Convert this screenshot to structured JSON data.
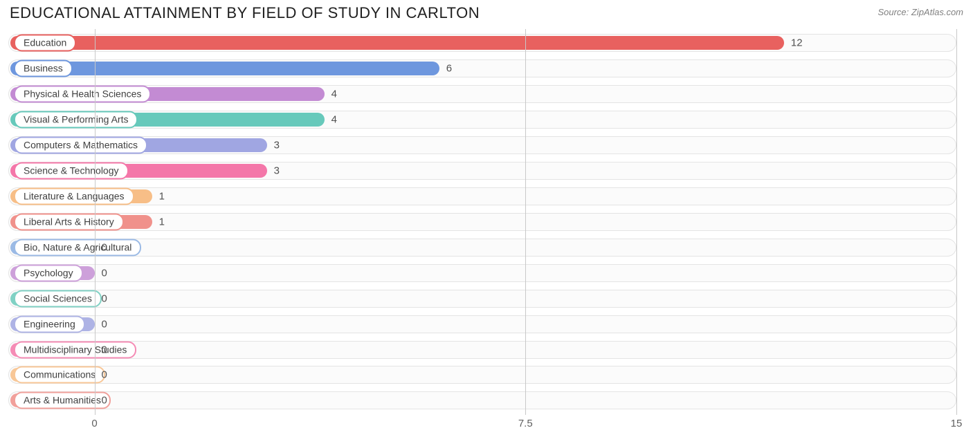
{
  "title": "EDUCATIONAL ATTAINMENT BY FIELD OF STUDY IN CARLTON",
  "source": "Source: ZipAtlas.com",
  "chart": {
    "type": "bar",
    "orientation": "horizontal",
    "background_color": "#ffffff",
    "track_color": "#fbfbfb",
    "track_border": "#e4e4e4",
    "grid_color": "#c8c8c8",
    "label_fontsize": 14,
    "value_fontsize": 15,
    "tick_fontsize": 15,
    "xmin": -1.5,
    "xmax": 15,
    "xticks": [
      {
        "pos": 0,
        "label": "0"
      },
      {
        "pos": 7.5,
        "label": "7.5"
      },
      {
        "pos": 15,
        "label": "15"
      }
    ],
    "bar_start": -1.5,
    "series": [
      {
        "label": "Education",
        "value": 12,
        "color": "#e8615f"
      },
      {
        "label": "Business",
        "value": 6,
        "color": "#6e97de"
      },
      {
        "label": "Physical & Health Sciences",
        "value": 4,
        "color": "#c38bd3"
      },
      {
        "label": "Visual & Performing Arts",
        "value": 4,
        "color": "#67c9bb"
      },
      {
        "label": "Computers & Mathematics",
        "value": 3,
        "color": "#a0a6e2"
      },
      {
        "label": "Science & Technology",
        "value": 3,
        "color": "#f477a9"
      },
      {
        "label": "Literature & Languages",
        "value": 1,
        "color": "#f7be87"
      },
      {
        "label": "Liberal Arts & History",
        "value": 1,
        "color": "#f0918b"
      },
      {
        "label": "Bio, Nature & Agricultural",
        "value": 0,
        "color": "#9bbae5"
      },
      {
        "label": "Psychology",
        "value": 0,
        "color": "#cda0da"
      },
      {
        "label": "Social Sciences",
        "value": 0,
        "color": "#80d1c4"
      },
      {
        "label": "Engineering",
        "value": 0,
        "color": "#aeb3e5"
      },
      {
        "label": "Multidisciplinary Studies",
        "value": 0,
        "color": "#f58cb5"
      },
      {
        "label": "Communications",
        "value": 0,
        "color": "#f8c797"
      },
      {
        "label": "Arts & Humanities",
        "value": 0,
        "color": "#f1a09b"
      }
    ]
  }
}
